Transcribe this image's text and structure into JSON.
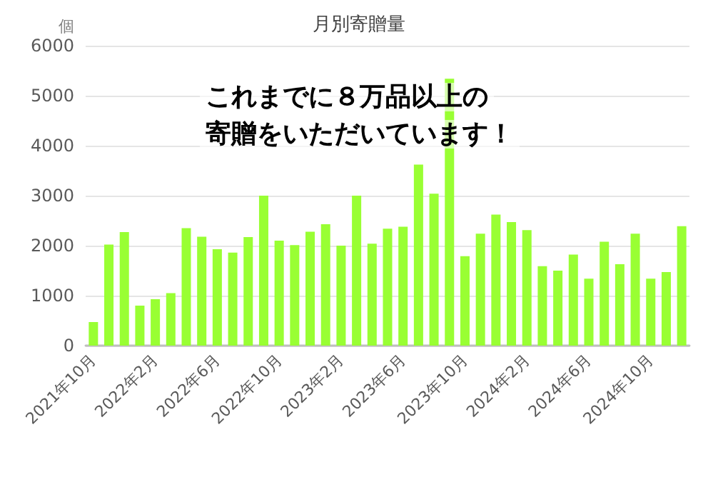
{
  "chart_data": {
    "type": "bar",
    "title": "月別寄贈量",
    "ylabel": "個",
    "categories": [
      "2021年10月",
      null,
      null,
      null,
      "2022年2月",
      null,
      null,
      null,
      "2022年6月",
      null,
      null,
      null,
      "2022年10月",
      null,
      null,
      null,
      "2023年2月",
      null,
      null,
      null,
      "2023年6月",
      null,
      null,
      null,
      "2023年10月",
      null,
      null,
      null,
      "2024年2月",
      null,
      null,
      null,
      "2024年6月",
      null,
      null,
      null,
      "2024年10月",
      null,
      null
    ],
    "values": [
      470,
      2020,
      2270,
      800,
      930,
      1050,
      2350,
      2180,
      1930,
      1860,
      2170,
      3000,
      2100,
      2010,
      2280,
      2430,
      2000,
      3000,
      2040,
      2340,
      2380,
      3620,
      3040,
      5340,
      1790,
      2240,
      2620,
      2470,
      2310,
      1590,
      1500,
      1820,
      1340,
      2080,
      1630,
      2240,
      1340,
      1470,
      2390
    ],
    "color": "#99ff33",
    "ylim": [
      0,
      6000
    ],
    "yticks": [
      0,
      1000,
      2000,
      3000,
      4000,
      5000,
      6000
    ],
    "grid": "y",
    "annotations": [
      "これまでに８万品以上の",
      "寄贈をいただいています！"
    ]
  }
}
